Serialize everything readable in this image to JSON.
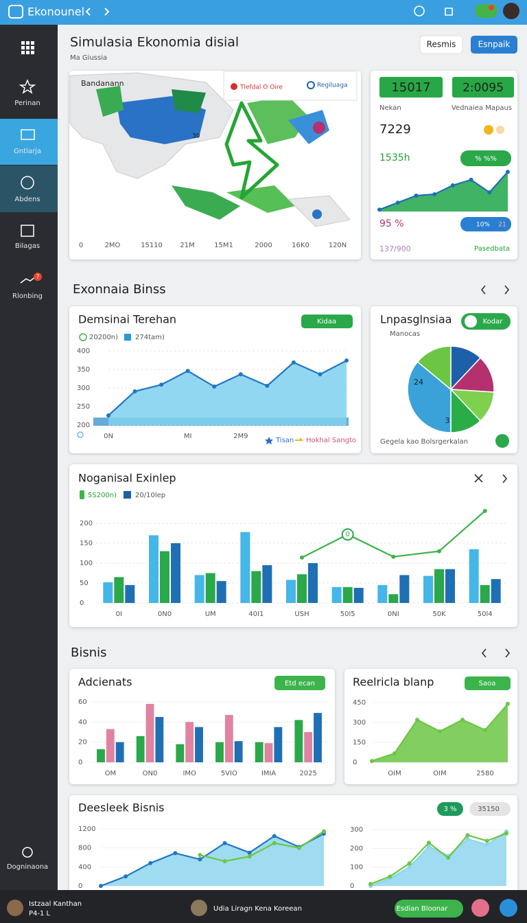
{
  "topbar": {
    "title": "Ekonounel"
  },
  "sidebar": {
    "items": [
      "Perinan",
      "Gntlarja",
      "Abdens",
      "Bilagas",
      "Rlonbing"
    ],
    "badge": "7",
    "footer": "Dogninaona"
  },
  "header": {
    "title": "Simulasia Ekonomia disial",
    "subtitle": "Ma Giussia",
    "buttons": [
      "Resmis",
      "Esnpaik"
    ]
  },
  "map": {
    "legend": [
      "Bandanann",
      "Tlefdal O Oire",
      "Regiluaga"
    ],
    "label": "30",
    "axis_labels": [
      "0",
      "2MO",
      "15110",
      "21M",
      "15M1",
      "2000",
      "16K0",
      "120N"
    ]
  },
  "stats": {
    "kpis": [
      "15017",
      "2:0095"
    ],
    "kpi_labels": [
      "Nekan",
      "Vednaiea Mapaus"
    ],
    "value1": "7229",
    "value2": "1535h",
    "pill1": "% %%",
    "spark": {
      "type": "area",
      "ylim": [
        0,
        10
      ],
      "markers": true,
      "series": [
        {
          "color": "#1f6fb5",
          "fill": "#1fa64a",
          "values": [
            0.4,
            1.9,
            3.4,
            3.7,
            5.6,
            6.8,
            4.1,
            8.5
          ]
        }
      ]
    },
    "value3": "95 %",
    "pill2": [
      "10%",
      "21"
    ],
    "value4": "137/900",
    "link": "Pasedbata"
  },
  "sections": [
    "Exonnaia Binss",
    "Bisnis"
  ],
  "charts": {
    "demand": {
      "type": "area",
      "title": "Demsinai Terehan",
      "pill": "Kidaa",
      "legend": [
        "20200n)",
        "274tam)"
      ],
      "footer_legend": [
        "Tisan",
        "Hokhal Sangto"
      ],
      "categories": [
        "0N",
        null,
        null,
        "MI",
        null,
        "2M9",
        null,
        null,
        null,
        null
      ],
      "series": [
        {
          "color": "#1f78c1",
          "fill": "#7fd0ef",
          "values": [
            226,
            291,
            309,
            346,
            304,
            337,
            306,
            369,
            337,
            374
          ]
        }
      ],
      "ylim": [
        200,
        400
      ],
      "yticks": [
        200,
        250,
        300,
        350,
        400
      ],
      "grid": true,
      "markers": true
    },
    "pie": {
      "type": "pie",
      "title": "Lnpasglnsiaa",
      "subtitle": "Manocas",
      "pill": "Kodar",
      "footer": "Gegela kao Bolsrgerkalan",
      "annotations": [
        "24",
        "3"
      ],
      "values": [
        12,
        14,
        12,
        12,
        36,
        14
      ],
      "colors": [
        "#1d5fa8",
        "#b5306e",
        "#7ed04f",
        "#2aad47",
        "#3aa2d8",
        "#6cc644"
      ]
    },
    "export": {
      "type": "bar",
      "title": "Noganisal Exinlep",
      "legend": [
        "5S200n)",
        "20/10lep"
      ],
      "annotation": "0",
      "categories": [
        "0I",
        "0N0",
        "UM",
        "40I1",
        "USH",
        "50l5",
        "0NI",
        "50K",
        "50l4"
      ],
      "series": [
        {
          "color": "#45b6e8",
          "values": [
            52,
            170,
            70,
            178,
            58,
            40,
            45,
            68,
            135
          ]
        },
        {
          "color": "#2aa84a",
          "values": [
            65,
            130,
            75,
            80,
            72,
            40,
            22,
            85,
            45
          ]
        },
        {
          "color": "#1f6fb5",
          "values": [
            45,
            150,
            55,
            95,
            100,
            38,
            70,
            85,
            60
          ]
        },
        {
          "type": "line",
          "color": "#3cb44b",
          "values": [
            null,
            null,
            null,
            null,
            114,
            172,
            116,
            130,
            231
          ]
        }
      ],
      "ylim": [
        0,
        220
      ],
      "yticks": [
        0,
        50,
        100,
        150,
        200
      ],
      "grid": true,
      "markers": true
    },
    "adc": {
      "type": "bar",
      "title": "Adcienats",
      "pill": "Etd ecan",
      "categories": [
        "OM",
        "ON0",
        "IMO",
        "5VIO",
        "IMIA",
        "2025"
      ],
      "series": [
        {
          "color": "#2aa84a",
          "values": [
            13,
            26,
            18,
            20,
            20,
            42
          ]
        },
        {
          "color": "#e083a3",
          "values": [
            33,
            58,
            40,
            47,
            19,
            30
          ]
        },
        {
          "color": "#1f6fb5",
          "values": [
            20,
            45,
            35,
            21,
            35,
            49
          ]
        }
      ],
      "ylim": [
        0,
        60
      ],
      "yticks": [
        0,
        20,
        40,
        60
      ],
      "grid": false
    },
    "reel": {
      "type": "area",
      "title": "Reelricla blanp",
      "pill": "Saoa",
      "categories": [
        null,
        "OIM",
        null,
        "OIM",
        null,
        "2580",
        null
      ],
      "series": [
        {
          "color": "#6cc644",
          "fill": "#6cc644",
          "values": [
            10,
            67,
            320,
            233,
            320,
            243,
            440
          ]
        }
      ],
      "ylim": [
        0,
        450
      ],
      "yticks": [
        0,
        150,
        300,
        450
      ],
      "grid": false,
      "markers": true
    },
    "dees": {
      "type": "area",
      "title": "Deesleek Bisnis",
      "pills": [
        "3 %",
        "35150"
      ],
      "series": [
        {
          "color": "#1f78c1",
          "fill": "#8fd6ee",
          "values": [
            0,
            200,
            480,
            690,
            560,
            900,
            700,
            1050,
            820,
            1100
          ]
        },
        {
          "type": "line",
          "color": "#6cc644",
          "values": [
            null,
            null,
            null,
            null,
            650,
            520,
            620,
            900,
            800,
            1150
          ]
        }
      ],
      "ylim": [
        0,
        1200
      ],
      "yticks": [
        0,
        400,
        800,
        1200
      ],
      "grid": false,
      "markers": true
    },
    "dees2": {
      "type": "area",
      "series": [
        {
          "color": "#8fd6ee",
          "fill": "#8fd6ee",
          "values": [
            0,
            40,
            100,
            210,
            160,
            250,
            220,
            290
          ]
        },
        {
          "type": "line",
          "color": "#6cc644",
          "values": [
            10,
            50,
            120,
            230,
            150,
            270,
            240,
            280
          ]
        }
      ],
      "ylim": [
        0,
        300
      ],
      "yticks": [
        0,
        100,
        200,
        300
      ],
      "grid": false,
      "markers": true
    }
  },
  "bottombar": {
    "user": "Istzaal Kanthan",
    "user_sub": "P4-1 L",
    "center": "Udia Liragn Kena Koreean",
    "button": "Esdian Bloonar"
  }
}
